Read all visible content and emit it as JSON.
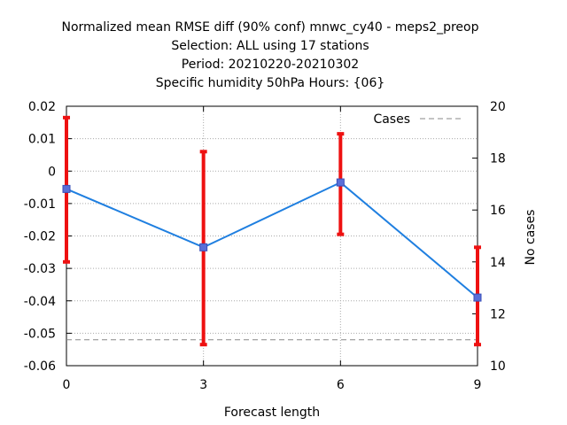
{
  "chart_data": {
    "type": "line",
    "title_lines": [
      "Normalized mean RMSE diff (90% conf) mnwc_cy40 - meps2_preop",
      "Selection: ALL using    17 stations",
      "Period: 20210220-20210302",
      "Specific humidity 50hPa   Hours: {06}"
    ],
    "xlabel": "Forecast length",
    "ylabel_right": "No cases",
    "x_ticks": [
      "0",
      "3",
      "6",
      "9"
    ],
    "y_ticks": [
      "0.02",
      "0.01",
      "0",
      "-0.01",
      "-0.02",
      "-0.03",
      "-0.04",
      "-0.05",
      "-0.06"
    ],
    "y2_ticks": [
      "20",
      "18",
      "16",
      "14",
      "12",
      "10"
    ],
    "xlim": [
      0,
      9
    ],
    "ylim": [
      -0.06,
      0.02
    ],
    "y2lim": [
      10,
      20
    ],
    "grid": true,
    "legend_position": "top-right",
    "legend": [
      "Cases"
    ],
    "x": [
      0,
      3,
      6,
      9
    ],
    "series": [
      {
        "values": [
          -0.0055,
          -0.0235,
          -0.0035,
          -0.039
        ],
        "err_low": [
          -0.028,
          -0.0535,
          -0.0195,
          -0.0535
        ],
        "err_high": [
          0.0165,
          0.006,
          0.0115,
          -0.0235
        ],
        "color": "#1f7fe0",
        "error_color": "#ee1111"
      },
      {
        "name": "Cases",
        "axis": "right",
        "values": [
          11,
          11,
          11,
          11
        ],
        "color": "#888888",
        "dashed": true
      }
    ]
  }
}
